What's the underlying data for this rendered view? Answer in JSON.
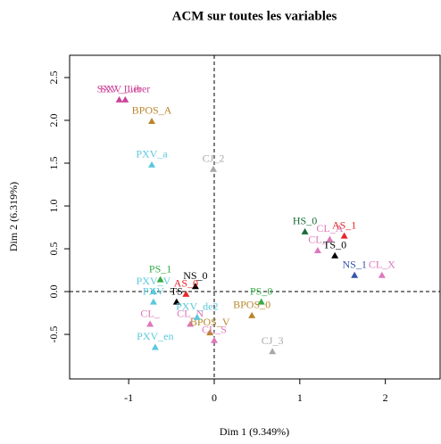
{
  "chart_data": {
    "type": "scatter",
    "title": "ACM sur toutes les variables",
    "xlabel": "Dim 1 (9.349%)",
    "ylabel": "Dim 2 (6.319%)",
    "xlim": [
      -1.69,
      2.64
    ],
    "ylim": [
      -1.02,
      2.76
    ],
    "xticks": [
      -1,
      {
        "value": 0,
        "label": "0"
      },
      1,
      2
    ],
    "yticks": [
      -0.5,
      {
        "value": 0,
        "label": "0.0"
      },
      0.5,
      {
        "value": 1,
        "label": "1.0"
      },
      1.5,
      {
        "value": 2,
        "label": "2.0"
      },
      2.5
    ],
    "reference_lines": {
      "x": 0,
      "y": 0
    },
    "points": [
      {
        "label": "SXV_Lier",
        "x": -1.11,
        "y": 2.24,
        "color": "#cc4499"
      },
      {
        "label": "SXV_Liber",
        "x": -1.04,
        "y": 2.24,
        "color": "#cc4499"
      },
      {
        "label": "BPOS_A",
        "x": -0.73,
        "y": 1.99,
        "color": "#b8862b"
      },
      {
        "label": "PXV_a",
        "x": -0.73,
        "y": 1.48,
        "color": "#5bc8dc"
      },
      {
        "label": "CJ_2",
        "x": -0.01,
        "y": 1.43,
        "color": "#a8a8a8"
      },
      {
        "label": "HS_0",
        "x": 1.06,
        "y": 0.7,
        "color": "#1a6b3a"
      },
      {
        "label": "CL_A",
        "x": 1.35,
        "y": 0.61,
        "color": "#dd77bb"
      },
      {
        "label": "AS_1",
        "x": 1.52,
        "y": 0.65,
        "color": "#e8252a"
      },
      {
        "label": "CL_",
        "x": 1.21,
        "y": 0.48,
        "color": "#dd77bb"
      },
      {
        "label": "TS_0",
        "x": 1.41,
        "y": 0.42,
        "color": "#000000"
      },
      {
        "label": "NS_1",
        "x": 1.64,
        "y": 0.19,
        "color": "#3355aa"
      },
      {
        "label": "CL_X",
        "x": 1.96,
        "y": 0.19,
        "color": "#dd77bb"
      },
      {
        "label": "PS_1",
        "x": -0.63,
        "y": 0.14,
        "color": "#33aa44"
      },
      {
        "label": "NS_0",
        "x": -0.22,
        "y": 0.06,
        "color": "#000000"
      },
      {
        "label": "PXV_V",
        "x": -0.71,
        "y": 0.0,
        "color": "#5bc8dc"
      },
      {
        "label": "PXV",
        "x": -0.71,
        "y": -0.12,
        "color": "#5bc8dc"
      },
      {
        "label": "CL_",
        "x": -0.75,
        "y": -0.38,
        "color": "#dd77bb"
      },
      {
        "label": "CL_N",
        "x": -0.28,
        "y": -0.38,
        "color": "#dd77bb"
      },
      {
        "label": "PXV_en",
        "x": -0.69,
        "y": -0.65,
        "color": "#5bc8dc"
      },
      {
        "label": "CJ_3",
        "x": 0.68,
        "y": -0.7,
        "color": "#a8a8a8"
      },
      {
        "label": "PS_0",
        "x": 0.55,
        "y": -0.12,
        "color": "#33aa44"
      },
      {
        "label": "BPOS_0",
        "x": 0.44,
        "y": -0.28,
        "color": "#b8862b"
      },
      {
        "label": "BPOS_V",
        "x": -0.05,
        "y": -0.48,
        "color": "#b8862b"
      },
      {
        "label": "TS",
        "x": -0.44,
        "y": -0.12,
        "color": "#000000"
      },
      {
        "label": "AS_0",
        "x": -0.33,
        "y": -0.03,
        "color": "#e8252a"
      },
      {
        "label": "PXV_de2",
        "x": -0.2,
        "y": -0.3,
        "color": "#5bc8dc"
      },
      {
        "label": "CL_S",
        "x": 0.0,
        "y": -0.57,
        "color": "#dd77bb"
      }
    ]
  }
}
